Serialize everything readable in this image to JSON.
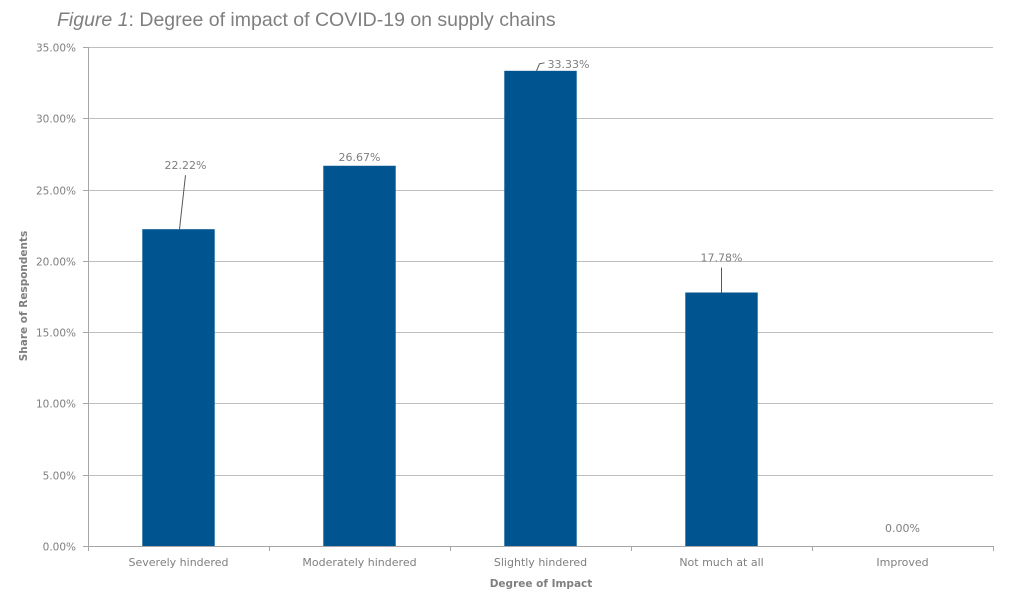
{
  "title": {
    "prefix": "Figure 1",
    "text": ": Degree of impact of COVID-19 on supply chains"
  },
  "chart_data": {
    "type": "bar",
    "title": "Figure 1: Degree of impact of COVID-19 on supply chains",
    "xlabel": "Degree of Impact",
    "ylabel": "Share of Respondents",
    "categories": [
      "Severely hindered",
      "Moderately hindered",
      "Slightly hindered",
      "Not much at all",
      "Improved"
    ],
    "values": [
      22.22,
      26.67,
      33.33,
      17.78,
      0.0
    ],
    "data_labels": [
      "22.22%",
      "26.67%",
      "33.33%",
      "17.78%",
      "0.00%"
    ],
    "ylim": [
      0,
      35
    ],
    "yticks": [
      0,
      5,
      10,
      15,
      20,
      25,
      30,
      35
    ],
    "ytick_labels": [
      "0.00%",
      "5.00%",
      "10.00%",
      "15.00%",
      "20.00%",
      "25.00%",
      "30.00%",
      "35.00%"
    ],
    "grid": true,
    "legend": "none",
    "bar_color": "#00548f"
  }
}
